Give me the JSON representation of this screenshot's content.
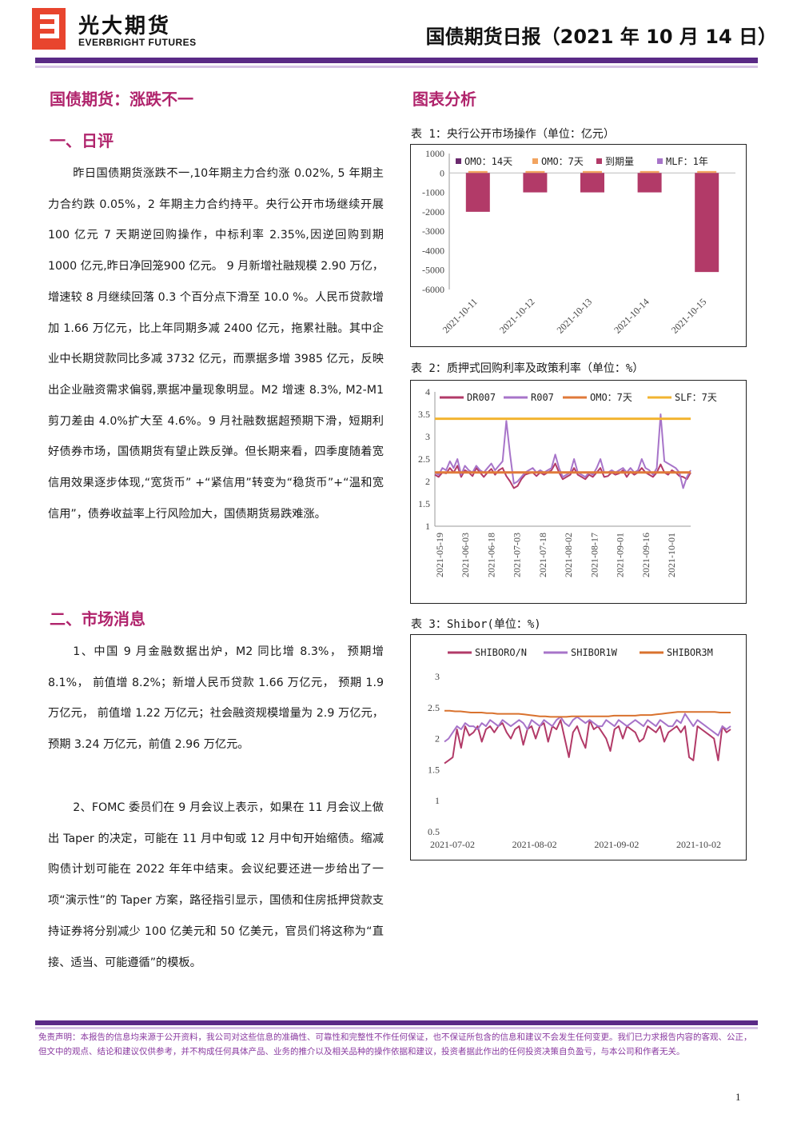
{
  "header": {
    "logo_cn": "光大期货",
    "logo_en": "EVERBRIGHT FUTURES",
    "report_title": "国债期货日报（2021 年 10 月 14 日）"
  },
  "colors": {
    "brand_purple": "#5a2a86",
    "heading_magenta": "#b0246c",
    "disclaimer_purple": "#8a3aa0"
  },
  "left": {
    "main_heading": "国债期货：涨跌不一",
    "section1_heading": "一、日评",
    "section1_paragraph": "昨日国债期货涨跌不一,10年期主力合约涨 0.02%, 5 年期主力合约跌 0.05%，2 年期主力合约持平。央行公开市场继续开展 100 亿元 7 天期逆回购操作，中标利率 2.35%,因逆回购到期1000 亿元,昨日净回笼900 亿元。 9 月新增社融规模 2.90 万亿，增速较 8 月继续回落 0.3 个百分点下滑至 10.0 %。人民币贷款增加 1.66 万亿元，比上年同期多减 2400 亿元，拖累社融。其中企业中长期贷款同比多减 3732 亿元，而票据多增 3985 亿元，反映出企业融资需求偏弱,票据冲量现象明显。M2 增速 8.3%, M2-M1 剪刀差由 4.0%扩大至 4.6%。9 月社融数据超预期下滑，短期利好债券市场，国债期货有望止跌反弹。但长期来看，四季度随着宽信用效果逐步体现,“宽货币” +“紧信用”转变为“稳货币”+“温和宽信用”，债券收益率上行风险加大，国债期货易跌难涨。",
    "section2_heading": "二、市场消息",
    "news1": "1、中国 9 月金融数据出炉，M2 同比增 8.3%， 预期增 8.1%， 前值增 8.2%；新增人民币贷款 1.66 万亿元， 预期 1.9 万亿元， 前值增 1.22 万亿元；社会融资规模增量为 2.9 万亿元， 预期 3.24 万亿元，前值 2.96 万亿元。",
    "news2": "2、FOMC 委员们在 9 月会议上表示，如果在 11 月会议上做出 Taper 的决定，可能在 11 月中旬或 12 月中旬开始缩债。缩减购债计划可能在 2022 年年中结束。会议纪要还进一步给出了一项“演示性”的 Taper 方案，路径指引显示，国债和住房抵押贷款支持证券将分别减少 100 亿美元和 50 亿美元，官员们将这称为“直接、适当、可能遵循”的模板。"
  },
  "right": {
    "heading": "图表分析",
    "chart1_title": "表 1：央行公开市场操作（单位：亿元）",
    "chart2_title": "表 2：质押式回购利率及政策利率（单位：%）",
    "chart3_title": "表 3：Shibor(单位：%)"
  },
  "chart_data": [
    {
      "type": "bar",
      "categories": [
        "2021-10-11",
        "2021-10-12",
        "2021-10-13",
        "2021-10-14",
        "2021-10-15"
      ],
      "series": [
        {
          "name": "OMO：14天",
          "color": "#6b2a6e",
          "values": [
            0,
            0,
            0,
            0,
            0
          ]
        },
        {
          "name": "OMO：7天",
          "color": "#f2a460",
          "values": [
            100,
            100,
            100,
            100,
            100
          ]
        },
        {
          "name": "到期量",
          "color": "#b23a68",
          "values": [
            -2000,
            -1000,
            -1000,
            -1000,
            -5100
          ]
        },
        {
          "name": "MLF：1年",
          "color": "#a774c9",
          "values": [
            0,
            0,
            0,
            0,
            0
          ]
        }
      ],
      "ylim": [
        -6000,
        1000
      ],
      "yticks": [
        1000,
        0,
        -1000,
        -2000,
        -3000,
        -4000,
        -5000,
        -6000
      ]
    },
    {
      "type": "line",
      "x_ticks": [
        "2021-05-19",
        "2021-06-03",
        "2021-06-18",
        "2021-07-03",
        "2021-07-18",
        "2021-08-02",
        "2021-08-17",
        "2021-09-01",
        "2021-09-16",
        "2021-10-01"
      ],
      "ylim": [
        1,
        4
      ],
      "yticks": [
        1,
        1.5,
        2,
        2.5,
        3,
        3.5,
        4
      ],
      "series": [
        {
          "name": "DR007",
          "color": "#b23a68",
          "values": [
            2.15,
            2.1,
            2.2,
            2.18,
            2.3,
            2.2,
            2.35,
            2.1,
            2.25,
            2.2,
            2.12,
            2.3,
            2.2,
            2.1,
            2.2,
            2.28,
            2.15,
            2.25,
            2.3,
            2.12,
            2.0,
            1.85,
            1.9,
            2.05,
            2.15,
            2.18,
            2.2,
            2.12,
            2.2,
            2.15,
            2.2,
            2.25,
            2.4,
            2.2,
            2.05,
            2.1,
            2.15,
            2.3,
            2.15,
            2.1,
            2.05,
            2.15,
            2.1,
            2.2,
            2.3,
            2.1,
            2.12,
            2.2,
            2.15,
            2.18,
            2.25,
            2.1,
            2.22,
            2.15,
            2.2,
            2.3,
            2.2,
            2.15,
            2.1,
            2.2,
            2.38,
            2.2,
            2.15,
            2.25,
            2.2,
            2.12,
            2.1,
            2.05,
            2.2
          ]
        },
        {
          "name": "R007",
          "color": "#a774c9",
          "values": [
            2.2,
            2.15,
            2.3,
            2.25,
            2.45,
            2.3,
            2.5,
            2.15,
            2.35,
            2.25,
            2.2,
            2.35,
            2.25,
            2.2,
            2.3,
            2.4,
            2.25,
            2.35,
            2.45,
            3.35,
            2.6,
            1.95,
            2.0,
            2.1,
            2.2,
            2.25,
            2.3,
            2.2,
            2.25,
            2.2,
            2.25,
            2.3,
            2.6,
            2.3,
            2.1,
            2.15,
            2.2,
            2.5,
            2.2,
            2.15,
            2.1,
            2.2,
            2.15,
            2.3,
            2.5,
            2.2,
            2.2,
            2.25,
            2.2,
            2.25,
            2.3,
            2.2,
            2.3,
            2.2,
            2.25,
            2.5,
            2.3,
            2.25,
            2.15,
            2.3,
            3.5,
            2.45,
            2.4,
            2.35,
            2.3,
            2.2,
            1.85,
            2.1,
            2.25
          ]
        },
        {
          "name": "OMO：7天",
          "color": "#e07a3a",
          "values": [
            2.2,
            2.2
          ]
        },
        {
          "name": "SLF：7天",
          "color": "#f2b431",
          "values": [
            3.4,
            3.4
          ]
        }
      ]
    },
    {
      "type": "line",
      "x_ticks": [
        "2021-07-02",
        "2021-08-02",
        "2021-09-02",
        "2021-10-02"
      ],
      "ylim": [
        0.5,
        3
      ],
      "yticks": [
        0.5,
        1,
        1.5,
        2,
        2.5,
        3
      ],
      "series": [
        {
          "name": "SHIBORO/N",
          "color": "#b23a68",
          "values": [
            1.6,
            1.65,
            1.7,
            2.15,
            1.85,
            2.2,
            2.05,
            2.1,
            2.2,
            1.95,
            2.15,
            2.2,
            2.1,
            2.2,
            2.25,
            2.1,
            2.0,
            2.15,
            2.2,
            1.9,
            2.15,
            2.2,
            2.0,
            2.2,
            2.25,
            1.95,
            2.2,
            2.15,
            2.3,
            2.0,
            1.7,
            2.1,
            2.2,
            2.0,
            1.85,
            2.3,
            2.15,
            2.2,
            2.1,
            2.0,
            1.8,
            2.15,
            2.2,
            2.0,
            2.2,
            2.15,
            2.1,
            1.95,
            2.0,
            2.2,
            2.15,
            2.1,
            2.2,
            1.95,
            2.1,
            2.15,
            2.2,
            2.1,
            2.2,
            1.7,
            1.65,
            2.2,
            2.15,
            2.1,
            2.05,
            2.0,
            1.65,
            2.2,
            2.1,
            2.15
          ]
        },
        {
          "name": "SHIBOR1W",
          "color": "#a774c9",
          "values": [
            1.95,
            2.0,
            2.1,
            2.2,
            2.15,
            2.25,
            2.2,
            2.2,
            2.15,
            2.25,
            2.2,
            2.3,
            2.25,
            2.2,
            2.3,
            2.25,
            2.2,
            2.25,
            2.3,
            2.25,
            2.15,
            2.3,
            2.25,
            2.2,
            2.3,
            2.25,
            2.2,
            2.3,
            2.35,
            2.25,
            2.2,
            2.3,
            2.35,
            2.3,
            2.25,
            2.3,
            2.25,
            2.2,
            2.2,
            2.3,
            2.25,
            2.2,
            2.3,
            2.25,
            2.2,
            2.25,
            2.3,
            2.25,
            2.2,
            2.3,
            2.25,
            2.2,
            2.3,
            2.25,
            2.2,
            2.2,
            2.3,
            2.25,
            2.4,
            2.3,
            2.2,
            2.3,
            2.25,
            2.2,
            2.15,
            2.1,
            2.05,
            2.2,
            2.15,
            2.2
          ]
        },
        {
          "name": "SHIBOR3M",
          "color": "#d9722e",
          "values": [
            2.45,
            2.45,
            2.44,
            2.44,
            2.43,
            2.42,
            2.42,
            2.42,
            2.41,
            2.41,
            2.4,
            2.4,
            2.4,
            2.4,
            2.4,
            2.39,
            2.38,
            2.37,
            2.36,
            2.36,
            2.35,
            2.35,
            2.35,
            2.35,
            2.36,
            2.36,
            2.36,
            2.36,
            2.36,
            2.36,
            2.36,
            2.36,
            2.37,
            2.37,
            2.37,
            2.37,
            2.37,
            2.38,
            2.38,
            2.38,
            2.39,
            2.4,
            2.41,
            2.42,
            2.43,
            2.43,
            2.43,
            2.43,
            2.43,
            2.43,
            2.43,
            2.43,
            2.42,
            2.42,
            2.42
          ]
        }
      ]
    }
  ],
  "footer": {
    "disclaimer": "免责声明：本报告的信息均来源于公开资料，我公司对这些信息的准确性、可靠性和完整性不作任何保证，也不保证所包含的信息和建议不会发生任何变更。我们已力求报告内容的客观、公正，但文中的观点、结论和建议仅供参考，并不构成任何具体产品、业务的推介以及相关品种的操作依据和建议，投资者据此作出的任何投资决策自负盈亏，与本公司和作者无关。",
    "page_number": "1"
  }
}
